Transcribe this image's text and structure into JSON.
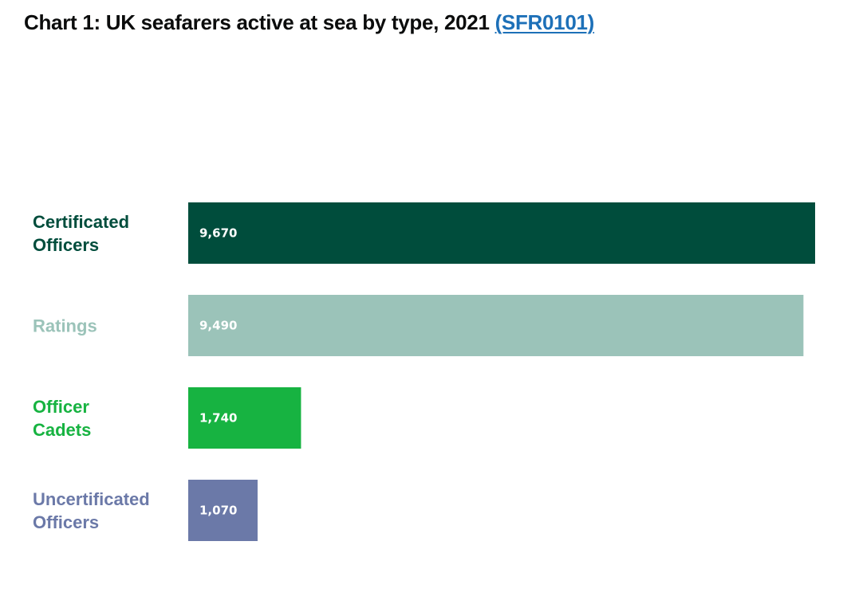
{
  "title": {
    "text": "Chart 1: UK seafarers active at sea by type, 2021",
    "link_text": "(SFR0101)"
  },
  "chart_data": {
    "type": "bar",
    "orientation": "horizontal",
    "title": "Chart 1: UK seafarers active at sea by type, 2021",
    "categories": [
      [
        "Certificated",
        "Officers"
      ],
      [
        "Ratings"
      ],
      [
        "Officer",
        "Cadets"
      ],
      [
        "Uncertificated",
        "Officers"
      ]
    ],
    "values": [
      9670,
      9490,
      1740,
      1070
    ],
    "value_labels": [
      "9,670",
      "9,490",
      "1,740",
      "1,070"
    ],
    "colors": [
      "#004d3c",
      "#9bc3b9",
      "#17b341",
      "#6b79a8"
    ],
    "xlim": [
      0,
      9670
    ],
    "grid": false,
    "legend": "none"
  }
}
